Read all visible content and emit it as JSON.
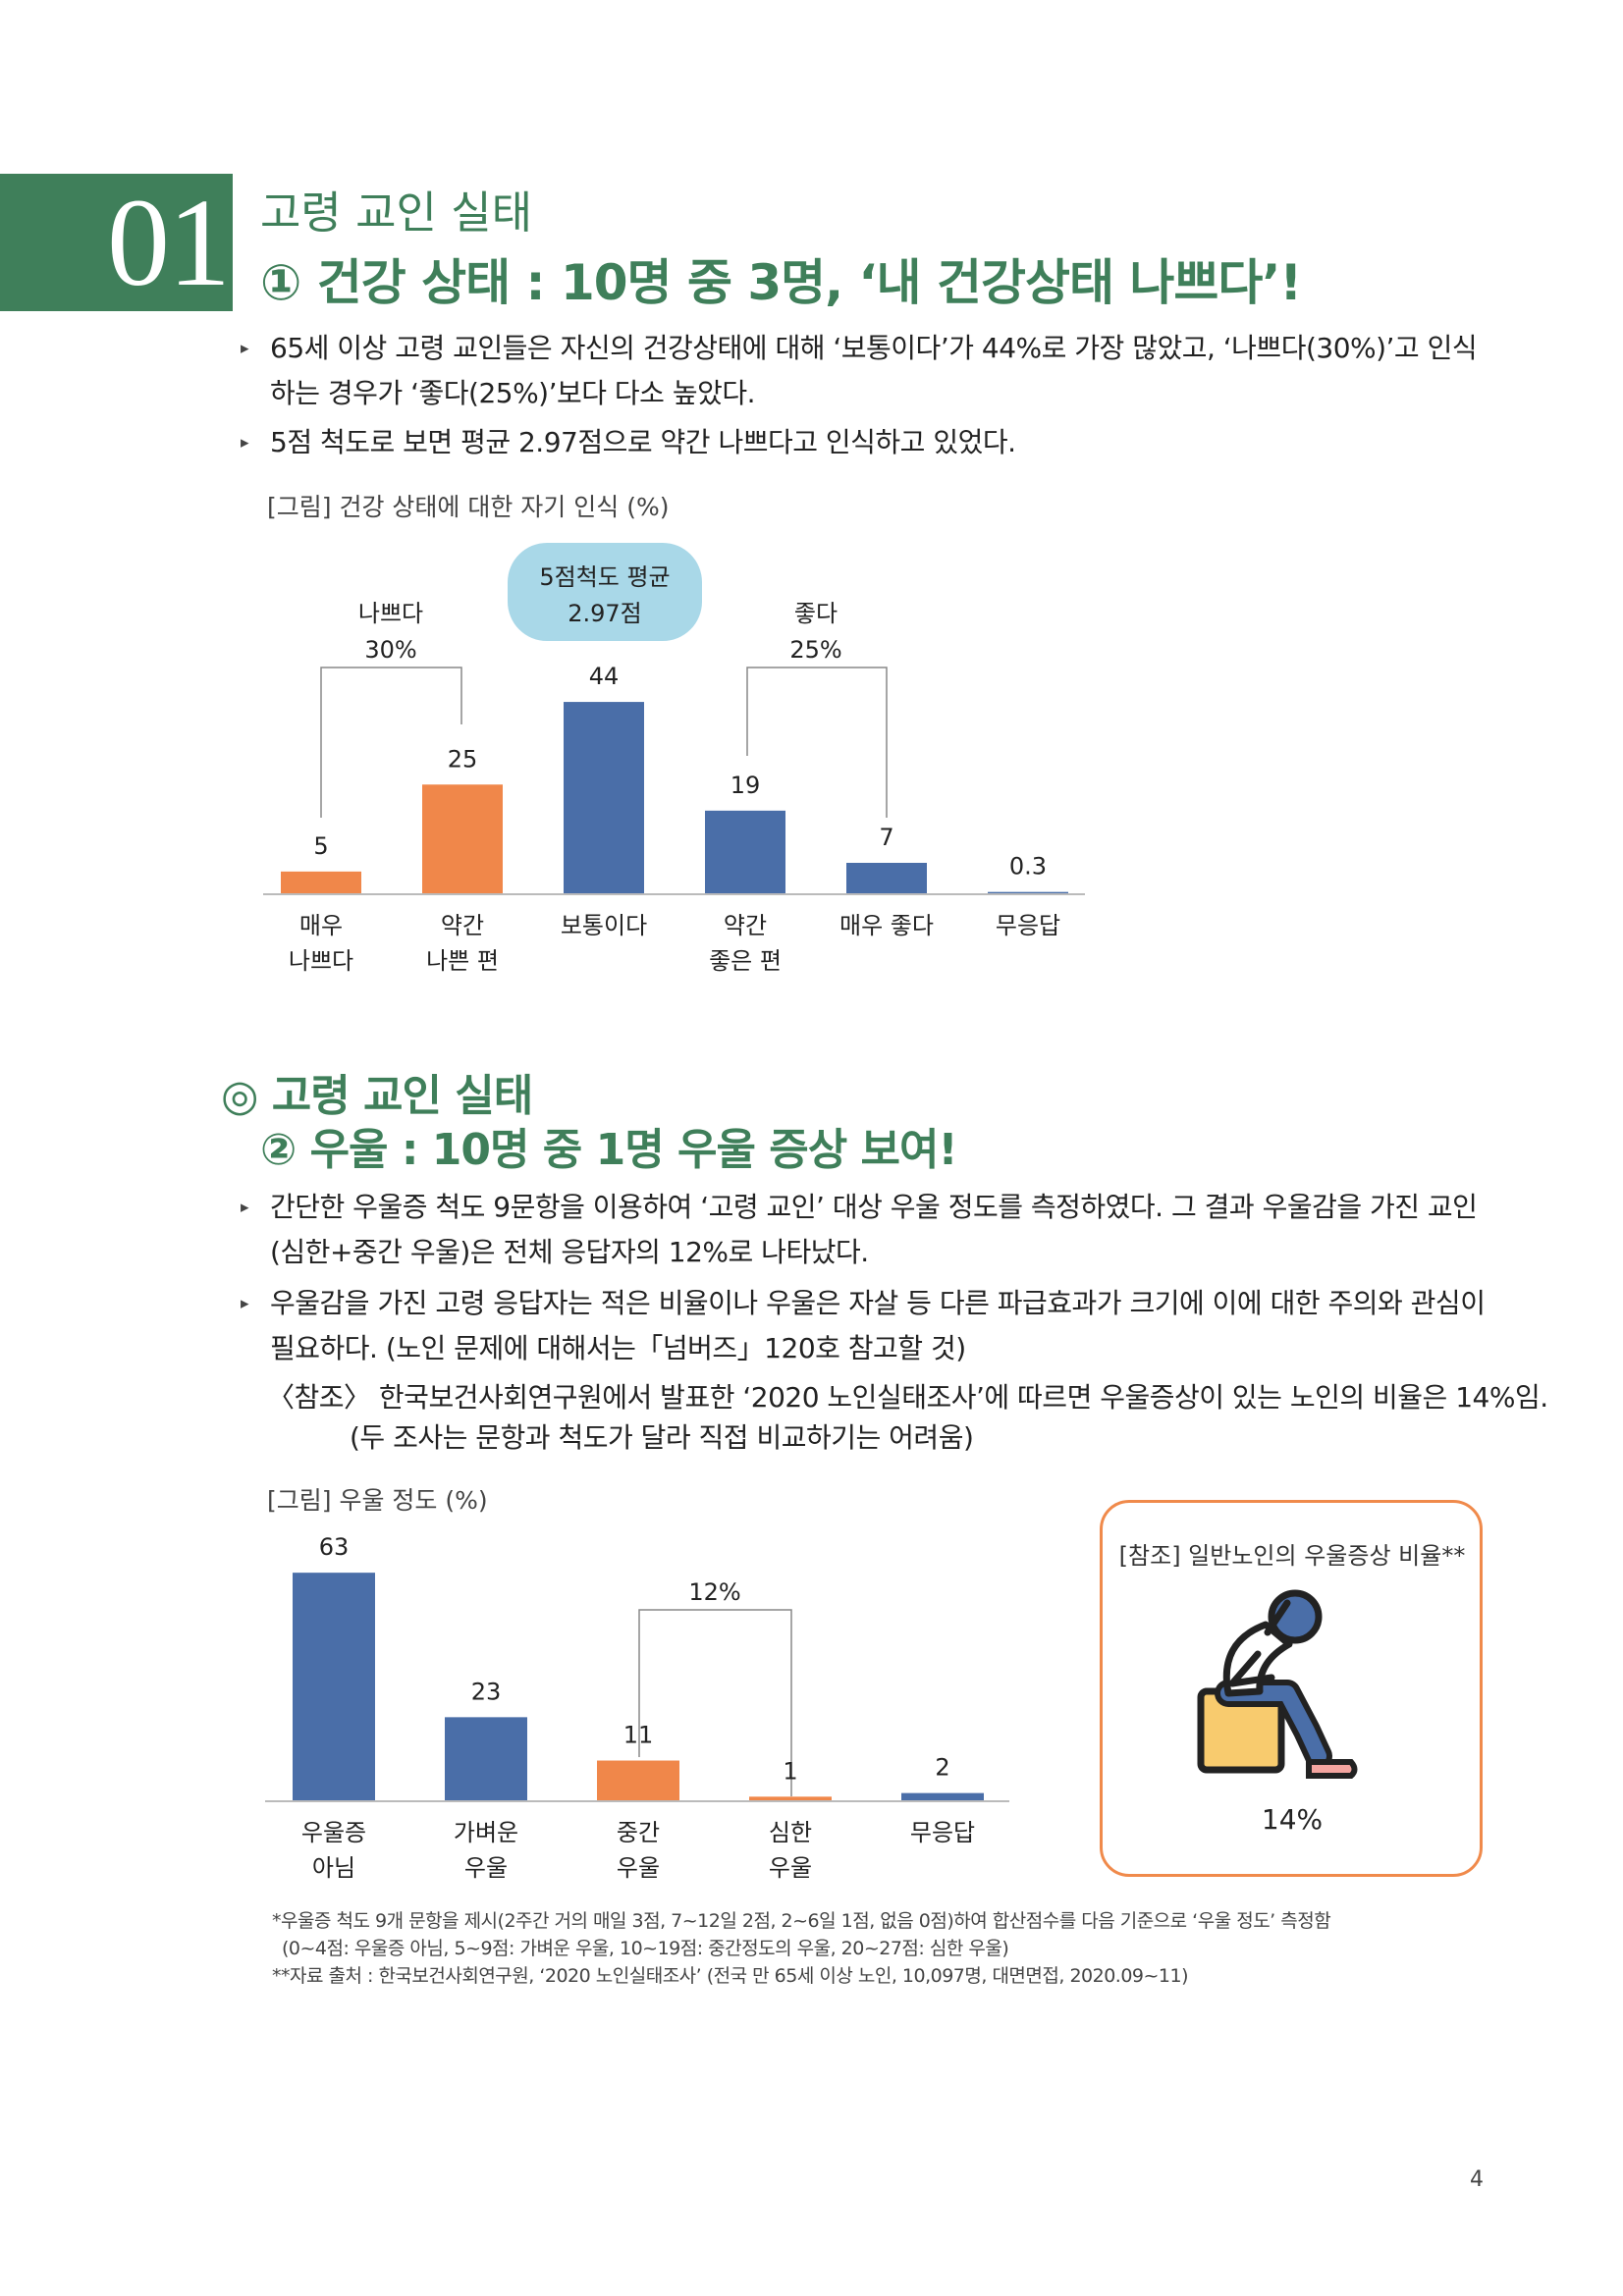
{
  "section": {
    "number": "01",
    "subtitle": "고령 교인 실태",
    "title": "① 건강 상태 : 10명 중 3명, ‘내 건강상태 나쁘다’!"
  },
  "bullets1": [
    "65세 이상 고령 교인들은 자신의 건강상태에 대해 ‘보통이다’가 44%로 가장 많았고, ‘나쁘다(30%)’고 인식하는 경우가 ‘좋다(25%)’보다 다소 높았다.",
    "5점 척도로 보면 평균 2.97점으로 약간 나쁘다고 인식하고 있었다."
  ],
  "chart1_caption": "[그림] 건강 상태에 대한 자기 인식 (%)",
  "chart1_annotations": {
    "avg_line1": "5점척도 평균",
    "avg_line2": "2.97점",
    "bad_label": "나쁘다",
    "bad_pct": "30%",
    "good_label": "좋다",
    "good_pct": "25%"
  },
  "section2": {
    "title1": "◎ 고령 교인 실태",
    "title2": "② 우울 : 10명 중 1명 우울 증상 보여!"
  },
  "bullets2": [
    "간단한 우울증 척도 9문항을 이용하여 ‘고령 교인’ 대상 우울 정도를 측정하였다. 그 결과 우울감을 가진 교인(심한+중간 우울)은 전체 응답자의 12%로 나타났다.",
    "우울감을 가진 고령 응답자는 적은 비율이나 우울은 자살 등 다른 파급효과가 크기에 이에 대한 주의와 관심이 필요하다. (노인 문제에 대해서는「넘버즈」120호 참고할 것)"
  ],
  "reference": {
    "line1": "〈참조〉 한국보건사회연구원에서 발표한 ‘2020 노인실태조사’에 따르면 우울증상이 있는 노인의 비율은 14%임.",
    "line2": "(두 조사는 문항과 척도가 달라 직접 비교하기는 어려움)"
  },
  "chart2_caption": "[그림] 우울 정도 (%)",
  "chart2_annotations": {
    "bracket_pct": "12%"
  },
  "ref_box": {
    "title": "[참조] 일반노인의 우울증상 비율**",
    "value": "14%",
    "icon": "depressed-person-icon"
  },
  "notes": [
    "*우울증 척도 9개 문항을 제시(2주간 거의 매일 3점, 7~12일 2점, 2~6일 1점, 없음 0점)하여 합산점수를 다음 기준으로 ‘우울 정도’ 측정함",
    "(0~4점: 우울증 아님, 5~9점: 가벼운 우울, 10~19점: 중간정도의 우울, 20~27점: 심한 우울)",
    "**자료 출처 : 한국보건사회연구원, ‘2020 노인실태조사’ (전국 만 65세 이상 노인, 10,097명, 대면면접, 2020.09~11)"
  ],
  "page_number": "4",
  "colors": {
    "green": "#3f7f5a",
    "blue": "#4a6ea8",
    "orange": "#f0874a",
    "bubble": "#a9d8e8"
  },
  "chart_data": [
    {
      "type": "bar",
      "title": "[그림] 건강 상태에 대한 자기 인식 (%)",
      "categories": [
        "매우 나쁘다",
        "약간 나쁜 편",
        "보통이다",
        "약간 좋은 편",
        "매우 좋다",
        "무응답"
      ],
      "values": [
        5,
        25,
        44,
        19,
        7,
        0.3
      ],
      "value_labels": [
        "5",
        "25",
        "44",
        "19",
        "7",
        "0.3"
      ],
      "bar_colors": [
        "#f0874a",
        "#f0874a",
        "#4a6ea8",
        "#4a6ea8",
        "#4a6ea8",
        "#4a6ea8"
      ],
      "ylim": [
        0,
        50
      ]
    },
    {
      "type": "bar",
      "title": "[그림] 우울 정도 (%)",
      "categories": [
        "우울증 아님",
        "가벼운 우울",
        "중간 우울",
        "심한 우울",
        "무응답"
      ],
      "values": [
        63,
        23,
        11,
        1,
        2
      ],
      "value_labels": [
        "63",
        "23",
        "11",
        "1",
        "2"
      ],
      "bar_colors": [
        "#4a6ea8",
        "#4a6ea8",
        "#f0874a",
        "#f0874a",
        "#4a6ea8"
      ],
      "ylim": [
        0,
        70
      ]
    }
  ],
  "chart1_cat_lines": [
    [
      "매우",
      "나쁘다"
    ],
    [
      "약간",
      "나쁜 편"
    ],
    [
      "보통이다"
    ],
    [
      "약간",
      "좋은 편"
    ],
    [
      "매우 좋다"
    ],
    [
      "무응답"
    ]
  ],
  "chart2_cat_lines": [
    [
      "우울증",
      "아님"
    ],
    [
      "가벼운",
      "우울"
    ],
    [
      "중간",
      "우울"
    ],
    [
      "심한",
      "우울"
    ],
    [
      "무응답"
    ]
  ]
}
